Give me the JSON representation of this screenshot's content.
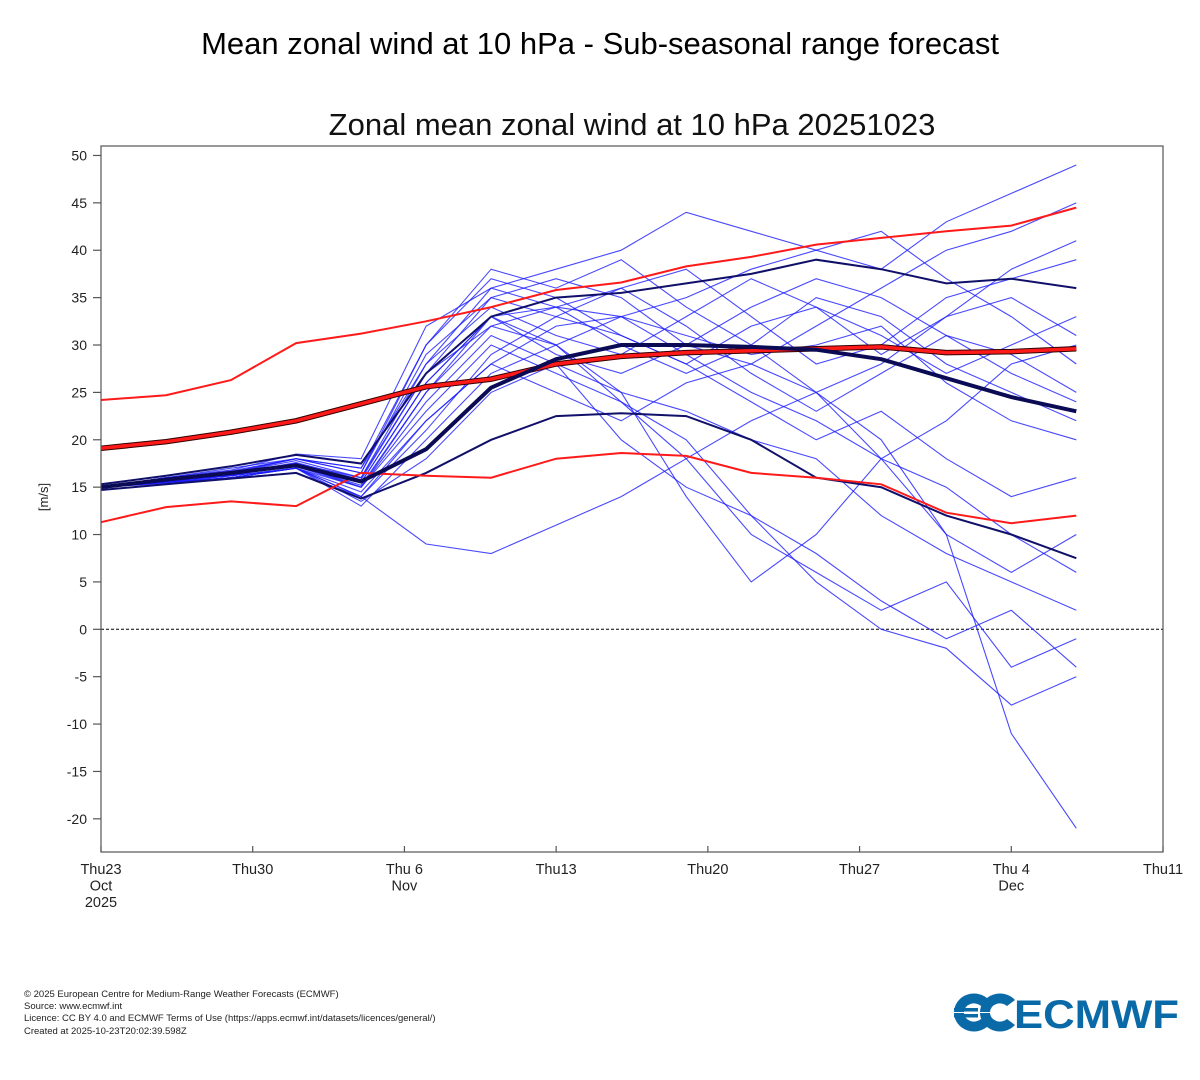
{
  "page_title": "Mean zonal wind at 10 hPa - Sub-seasonal range forecast",
  "footer": {
    "lines": [
      "© 2025 European Centre for Medium-Range Weather Forecasts (ECMWF)",
      "Source: www.ecmwf.int",
      "Licence: CC BY 4.0 and ECMWF Terms of Use (https://apps.ecmwf.int/datasets/licences/general/)",
      "Created at 2025-10-23T20:02:39.598Z"
    ]
  },
  "logo": {
    "text": "ECMWF",
    "color": "#0a6aa8"
  },
  "chart_data": {
    "type": "line",
    "title": "Zonal mean zonal wind at 10 hPa 20251023",
    "ylabel": "[m/s]",
    "xlabel": "",
    "x_unit": "days since forecast start (Thu 23 Oct 2025)",
    "xlim": [
      0,
      49
    ],
    "ylim": [
      -23.5,
      51
    ],
    "yticks": [
      50,
      45,
      40,
      35,
      30,
      25,
      20,
      15,
      10,
      5,
      0,
      -5,
      -10,
      -15,
      -20
    ],
    "xticks": [
      {
        "day": 0,
        "lines": [
          "Thu23",
          "Oct",
          "2025"
        ]
      },
      {
        "day": 7,
        "lines": [
          "Thu30"
        ]
      },
      {
        "day": 14,
        "lines": [
          "Thu 6",
          "Nov"
        ]
      },
      {
        "day": 21,
        "lines": [
          "Thu13"
        ]
      },
      {
        "day": 28,
        "lines": [
          "Thu20"
        ]
      },
      {
        "day": 35,
        "lines": [
          "Thu27"
        ]
      },
      {
        "day": 42,
        "lines": [
          "Thu 4",
          "Dec"
        ]
      },
      {
        "day": 49,
        "lines": [
          "Thu11"
        ]
      }
    ],
    "grid": false,
    "reference_line": {
      "y": 0,
      "style": "dashed",
      "color": "#000000"
    },
    "x": [
      0,
      3,
      6,
      9,
      12,
      15,
      18,
      21,
      24,
      27,
      30,
      33,
      36,
      39,
      42,
      45
    ],
    "colors": {
      "members": "#1a1aff",
      "quantiles": "#10106a",
      "ensemble_mean": "#0a0a55",
      "climate": "#ff1a1a"
    },
    "climate_upper": [
      24.2,
      24.7,
      26.3,
      30.2,
      31.2,
      32.5,
      34.0,
      35.8,
      36.6,
      38.3,
      39.3,
      40.6,
      41.3,
      42.0,
      42.6,
      44.5
    ],
    "climate_mean": [
      19.1,
      19.8,
      20.8,
      22.0,
      23.8,
      25.6,
      26.4,
      28.0,
      28.8,
      29.2,
      29.4,
      29.6,
      29.8,
      29.2,
      29.3,
      29.6
    ],
    "climate_lower": [
      11.3,
      12.9,
      13.5,
      13.0,
      16.5,
      16.2,
      16.0,
      18.0,
      18.6,
      18.3,
      16.5,
      16.0,
      15.3,
      12.3,
      11.2,
      12.0
    ],
    "ensemble_mean": [
      15.0,
      15.8,
      16.5,
      17.3,
      15.6,
      19.0,
      25.5,
      28.5,
      30.0,
      30.0,
      29.8,
      29.5,
      28.5,
      26.5,
      24.5,
      23.0
    ],
    "ensemble_upper": [
      15.3,
      16.2,
      17.2,
      18.4,
      17.5,
      27.0,
      33.0,
      35.0,
      35.5,
      36.5,
      37.5,
      39.0,
      38.0,
      36.5,
      37.0,
      36.0
    ],
    "ensemble_lower": [
      14.7,
      15.3,
      15.9,
      16.5,
      13.8,
      16.5,
      20.0,
      22.5,
      22.8,
      22.5,
      20.0,
      16.0,
      15.0,
      12.0,
      10.0,
      7.5
    ],
    "members": [
      [
        15,
        15.5,
        16,
        17,
        14,
        9,
        8,
        11,
        14,
        18,
        22,
        25,
        20,
        10,
        -11,
        -21
      ],
      [
        15,
        16,
        16.5,
        18,
        17,
        28,
        36,
        38,
        40,
        44,
        42,
        40,
        38,
        43,
        46,
        49
      ],
      [
        15,
        15.8,
        16.2,
        17,
        15,
        25,
        33,
        30,
        25,
        14,
        5,
        10,
        18,
        22,
        28,
        30
      ],
      [
        15,
        16,
        16.5,
        17.5,
        16,
        27,
        35,
        37,
        35,
        30,
        28,
        32,
        36,
        40,
        42,
        45
      ],
      [
        15,
        15.5,
        16,
        17,
        13,
        20,
        27,
        30,
        24,
        20,
        12,
        8,
        3,
        -1,
        2,
        -4
      ],
      [
        15,
        16,
        17,
        18,
        17,
        30,
        38,
        36,
        39,
        34,
        30,
        25,
        28,
        33,
        38,
        41
      ],
      [
        15,
        15.5,
        16,
        16.5,
        14,
        22,
        28,
        32,
        33,
        29,
        25,
        22,
        18,
        15,
        10,
        6
      ],
      [
        15,
        15.6,
        16.3,
        17.5,
        15.5,
        26,
        33,
        34,
        30,
        27,
        30,
        35,
        33,
        28,
        25,
        22
      ],
      [
        15,
        15.4,
        16,
        17,
        13.5,
        18,
        25,
        28,
        20,
        15,
        12,
        5,
        0,
        -2,
        -8,
        -5
      ],
      [
        15,
        15.9,
        16.6,
        18,
        16.5,
        29,
        35,
        33,
        36,
        38,
        33,
        28,
        30,
        35,
        37,
        39
      ],
      [
        15,
        15.7,
        16.4,
        17.2,
        15,
        24,
        31,
        28,
        25,
        23,
        20,
        18,
        12,
        8,
        5,
        2
      ],
      [
        15,
        15.8,
        16.5,
        17.8,
        16,
        28,
        34,
        31,
        29,
        33,
        37,
        34,
        31,
        27,
        30,
        33
      ],
      [
        15,
        15.5,
        16.2,
        17.4,
        15,
        23,
        30,
        27,
        24,
        18,
        10,
        6,
        2,
        5,
        -4,
        -1
      ],
      [
        15,
        16,
        16.8,
        18.5,
        18,
        32,
        36,
        34,
        33,
        31,
        29,
        30,
        32,
        26,
        22,
        20
      ],
      [
        15,
        15.6,
        16.2,
        17,
        14,
        21,
        29,
        33,
        31,
        28,
        24,
        20,
        23,
        18,
        14,
        16
      ],
      [
        15,
        15.8,
        16.4,
        17.6,
        15.8,
        27,
        32,
        30,
        33,
        35,
        38,
        40,
        42,
        37,
        33,
        28
      ],
      [
        15,
        15.5,
        16,
        17,
        14.5,
        22,
        28,
        25,
        22,
        26,
        28,
        25,
        18,
        10,
        6,
        10
      ],
      [
        15,
        15.9,
        16.7,
        18,
        16.5,
        30,
        37,
        35,
        31,
        28,
        32,
        34,
        29,
        33,
        35,
        31
      ],
      [
        15,
        15.6,
        16.3,
        17.3,
        15.2,
        25,
        32,
        34,
        36,
        32,
        27,
        23,
        27,
        31,
        29,
        25
      ],
      [
        15,
        15.7,
        16.4,
        17.5,
        15.5,
        26,
        33,
        29,
        27,
        30,
        34,
        37,
        35,
        31,
        27,
        24
      ]
    ]
  }
}
